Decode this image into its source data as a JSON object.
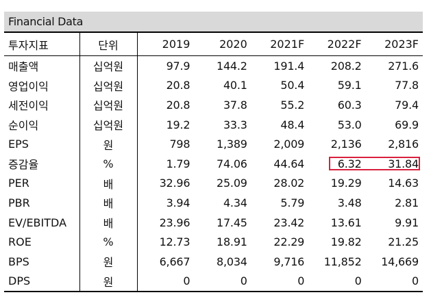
{
  "title": "Financial Data",
  "headers": [
    "투자지표",
    "단위",
    "2019",
    "2020",
    "2021F",
    "2022F",
    "2023F"
  ],
  "rows": [
    {
      "label": "매출액",
      "unit": "십억원",
      "values": [
        "97.9",
        "144.2",
        "191.4",
        "208.2",
        "271.6"
      ]
    },
    {
      "label": "영업이익",
      "unit": "십억원",
      "values": [
        "20.8",
        "40.1",
        "50.4",
        "59.1",
        "77.8"
      ]
    },
    {
      "label": "세전이익",
      "unit": "십억원",
      "values": [
        "20.8",
        "37.8",
        "55.2",
        "60.3",
        "79.4"
      ]
    },
    {
      "label": "순이익",
      "unit": "십억원",
      "values": [
        "19.2",
        "33.3",
        "48.4",
        "53.0",
        "69.9"
      ]
    },
    {
      "label": "EPS",
      "unit": "원",
      "values": [
        "798",
        "1,389",
        "2,009",
        "2,136",
        "2,816"
      ]
    },
    {
      "label": "증감율",
      "unit": "%",
      "values": [
        "1.79",
        "74.06",
        "44.64",
        "6.32",
        "31.84"
      ]
    },
    {
      "label": "PER",
      "unit": "배",
      "values": [
        "32.96",
        "25.09",
        "28.02",
        "19.29",
        "14.63"
      ]
    },
    {
      "label": "PBR",
      "unit": "배",
      "values": [
        "3.94",
        "4.34",
        "5.79",
        "3.48",
        "2.81"
      ]
    },
    {
      "label": "EV/EBITDA",
      "unit": "배",
      "values": [
        "23.96",
        "17.45",
        "23.42",
        "13.61",
        "9.91"
      ]
    },
    {
      "label": "ROE",
      "unit": "%",
      "values": [
        "12.73",
        "18.91",
        "22.29",
        "19.82",
        "21.25"
      ]
    },
    {
      "label": "BPS",
      "unit": "원",
      "values": [
        "6,667",
        "8,034",
        "9,716",
        "11,852",
        "14,669"
      ]
    },
    {
      "label": "DPS",
      "unit": "원",
      "values": [
        "0",
        "0",
        "0",
        "0",
        "0"
      ]
    }
  ],
  "highlight_color": "#d81f3c"
}
